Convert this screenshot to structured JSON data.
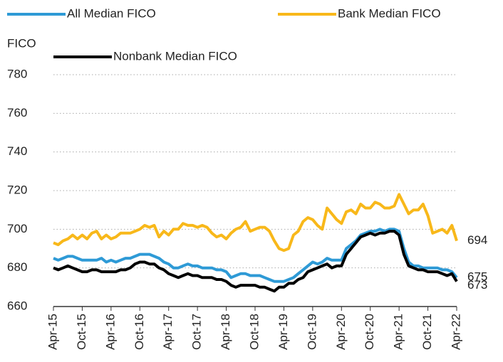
{
  "chart_data": {
    "type": "line",
    "y_label": "FICO",
    "categories": [
      "Apr-15",
      null,
      null,
      null,
      null,
      null,
      "Oct-15",
      null,
      null,
      null,
      null,
      null,
      "Apr-16",
      null,
      null,
      null,
      null,
      null,
      "Oct-16",
      null,
      null,
      null,
      null,
      null,
      "Apr-17",
      null,
      null,
      null,
      null,
      null,
      "Oct-17",
      null,
      null,
      null,
      null,
      null,
      "Apr-18",
      null,
      null,
      null,
      null,
      null,
      "Oct-18",
      null,
      null,
      null,
      null,
      null,
      "Apr-19",
      null,
      null,
      null,
      null,
      null,
      "Oct-19",
      null,
      null,
      null,
      null,
      null,
      "Apr-20",
      null,
      null,
      null,
      null,
      null,
      "Oct-20",
      null,
      null,
      null,
      null,
      null,
      "Apr-21",
      null,
      null,
      null,
      null,
      null,
      "Oct-21",
      null,
      null,
      null,
      null,
      null,
      "Apr-22"
    ],
    "series": [
      {
        "name": "All Median FICO",
        "color": "#2e9ad6",
        "values": [
          685,
          684,
          685,
          686,
          686,
          685,
          684,
          684,
          684,
          684,
          685,
          683,
          684,
          683,
          684,
          685,
          685,
          686,
          687,
          687,
          687,
          686,
          685,
          683,
          682,
          680,
          680,
          681,
          682,
          681,
          681,
          680,
          680,
          680,
          679,
          679,
          678,
          675,
          676,
          677,
          677,
          676,
          676,
          676,
          675,
          674,
          673,
          673,
          673,
          674,
          675,
          677,
          679,
          681,
          683,
          682,
          683,
          685,
          684,
          684,
          684,
          690,
          692,
          694,
          697,
          698,
          699,
          699,
          700,
          699,
          700,
          700,
          699,
          690,
          683,
          681,
          681,
          680,
          680,
          680,
          680,
          679,
          679,
          678,
          675
        ]
      },
      {
        "name": "Bank Median FICO",
        "color": "#f8b81a",
        "values": [
          693,
          692,
          694,
          695,
          697,
          695,
          697,
          695,
          698,
          699,
          695,
          697,
          695,
          696,
          698,
          698,
          698,
          699,
          700,
          702,
          701,
          702,
          696,
          699,
          697,
          700,
          700,
          703,
          702,
          702,
          701,
          702,
          701,
          698,
          696,
          697,
          695,
          698,
          700,
          701,
          704,
          699,
          700,
          701,
          701,
          699,
          694,
          690,
          689,
          690,
          697,
          699,
          704,
          706,
          705,
          702,
          700,
          711,
          708,
          705,
          703,
          709,
          710,
          708,
          713,
          711,
          711,
          714,
          713,
          711,
          711,
          712,
          718,
          713,
          708,
          710,
          710,
          713,
          707,
          698,
          699,
          700,
          698,
          702,
          694
        ]
      },
      {
        "name": "Nonbank Median FICO",
        "color": "#000000",
        "values": [
          680,
          679,
          680,
          681,
          680,
          679,
          678,
          678,
          679,
          679,
          678,
          678,
          678,
          678,
          679,
          679,
          680,
          682,
          683,
          683,
          682,
          682,
          680,
          679,
          677,
          676,
          675,
          676,
          677,
          676,
          676,
          675,
          675,
          675,
          674,
          674,
          673,
          671,
          670,
          671,
          671,
          671,
          671,
          670,
          670,
          669,
          668,
          670,
          670,
          672,
          672,
          674,
          675,
          678,
          679,
          680,
          681,
          682,
          680,
          681,
          681,
          687,
          690,
          693,
          696,
          697,
          698,
          697,
          698,
          698,
          699,
          699,
          697,
          687,
          681,
          680,
          679,
          679,
          678,
          678,
          678,
          677,
          676,
          677,
          673
        ]
      }
    ],
    "ylim": [
      660,
      780
    ],
    "yticks": [
      660,
      680,
      700,
      720,
      740,
      760,
      780
    ],
    "grid": true
  }
}
